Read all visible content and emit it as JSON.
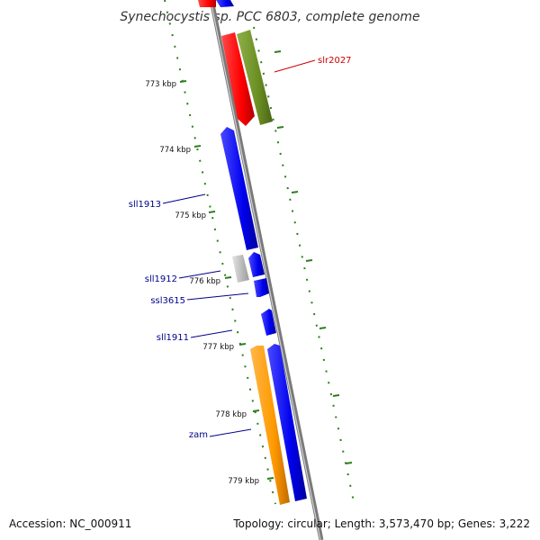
{
  "title": "Synechocystis sp. PCC 6803, complete genome",
  "footer": {
    "accession": "Accession: NC_000911",
    "summary": "Topology: circular; Length: 3,573,470 bp; Genes: 3,222"
  },
  "colors": {
    "backbone": "#8a8a8a",
    "tick": "#2e7d1e",
    "label_blue": "#00008b",
    "label_red": "#cc0000",
    "gene_red": "#ff0000",
    "gene_blue": "#0000ee",
    "gene_green": "#6b8e23",
    "gene_orange": "#ff9900",
    "gene_gray": "#c0c0c0"
  },
  "position_labels": [
    "773 kbp",
    "774 kbp",
    "775 kbp",
    "776 kbp",
    "777 kbp",
    "778 kbp",
    "779 kbp"
  ],
  "gene_labels": {
    "slr2027": "slr2027",
    "sll1913": "sll1913",
    "sll1912": "sll1912",
    "ssl3615": "ssl3615",
    "sll1911": "sll1911",
    "zam": "zam"
  }
}
